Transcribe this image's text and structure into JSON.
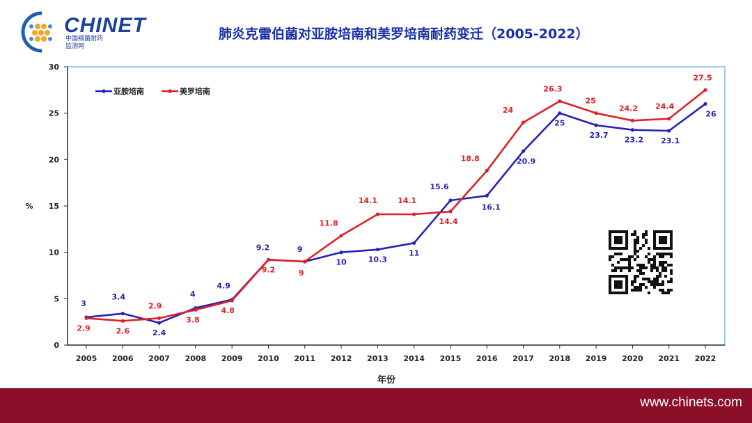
{
  "header": {
    "logo_text": "CHINET",
    "logo_sub_line1": "中国细菌耐药",
    "logo_sub_line2": "监测网",
    "title": "肺炎克雷伯菌对亚胺培南和美罗培南耐药变迁（2005-2022）"
  },
  "footer": {
    "url": "www.chinets.com"
  },
  "icons": {
    "logo": "chinet-logo-icon",
    "qr": "qr-code-icon"
  },
  "chart_data": {
    "type": "line",
    "title": "肺炎克雷伯菌对亚胺培南和美罗培南耐药变迁（2005-2022）",
    "xlabel": "年份",
    "ylabel": "%",
    "ylim": [
      0,
      30
    ],
    "yticks": [
      0,
      5,
      10,
      15,
      20,
      25,
      30
    ],
    "grid": false,
    "legend_position": "top-left",
    "x": [
      "2005",
      "2006",
      "2007",
      "2008",
      "2009",
      "2010",
      "2011",
      "2012",
      "2013",
      "2014",
      "2015",
      "2016",
      "2017",
      "2018",
      "2019",
      "2020",
      "2021",
      "2022"
    ],
    "series": [
      {
        "name": "亚胺培南",
        "color": "#2323b8",
        "values": [
          3,
          3.4,
          2.4,
          4,
          4.9,
          9.2,
          9,
          10,
          10.3,
          11,
          15.6,
          16.1,
          20.9,
          25,
          23.7,
          23.2,
          23.1,
          26
        ]
      },
      {
        "name": "美罗培南",
        "color": "#e01f26",
        "values": [
          2.9,
          2.6,
          2.9,
          3.8,
          4.8,
          9.2,
          9,
          11.8,
          14.1,
          14.1,
          14.4,
          18.8,
          24,
          26.3,
          25,
          24.2,
          24.4,
          27.5
        ]
      }
    ]
  }
}
